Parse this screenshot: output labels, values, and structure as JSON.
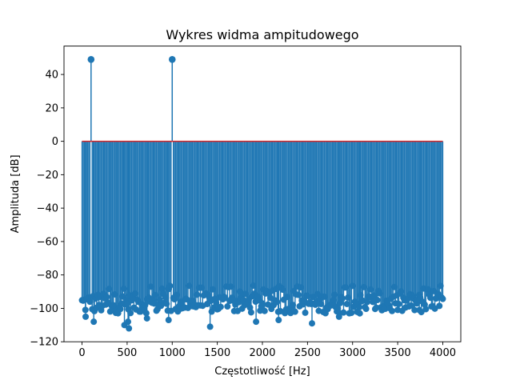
{
  "chart_data": {
    "type": "stem",
    "title": "Wykres widma ampitudowego",
    "xlabel": "Częstotliwość [Hz]",
    "ylabel": "Amplituda [dB]",
    "xlim": [
      -200,
      4200
    ],
    "ylim": [
      -120,
      57
    ],
    "xticks": [
      0,
      500,
      1000,
      1500,
      2000,
      2500,
      3000,
      3500,
      4000
    ],
    "xtick_labels": [
      "0",
      "500",
      "1000",
      "1500",
      "2000",
      "2500",
      "3000",
      "3500",
      "4000"
    ],
    "yticks": [
      -120,
      -100,
      -80,
      -60,
      -40,
      -20,
      0,
      20,
      40
    ],
    "ytick_labels": [
      "−120",
      "−100",
      "−80",
      "−60",
      "−40",
      "−20",
      "0",
      "20",
      "40"
    ],
    "baseline": 0,
    "grid": false,
    "legend": false,
    "colors": {
      "stem": "#1f77b4",
      "baseline": "#d62728",
      "frame": "#000000"
    },
    "peaks": [
      {
        "x": 100,
        "y": 49
      },
      {
        "x": 1000,
        "y": 49
      }
    ],
    "noise": {
      "x_range": [
        0,
        4000
      ],
      "step_hz": 12.5,
      "typical_db": -97,
      "min_db": -112,
      "max_db": -86
    },
    "noise_outliers": [
      {
        "x": 40,
        "y": -105
      },
      {
        "x": 130,
        "y": -108
      },
      {
        "x": 470,
        "y": -110
      },
      {
        "x": 510,
        "y": -108
      },
      {
        "x": 520,
        "y": -112
      },
      {
        "x": 720,
        "y": -106
      },
      {
        "x": 960,
        "y": -107
      },
      {
        "x": 1420,
        "y": -111
      },
      {
        "x": 1930,
        "y": -108
      },
      {
        "x": 2180,
        "y": -107
      },
      {
        "x": 2550,
        "y": -109
      },
      {
        "x": 2850,
        "y": -105
      },
      {
        "x": 3080,
        "y": -103
      },
      {
        "x": 3740,
        "y": -101
      }
    ]
  }
}
